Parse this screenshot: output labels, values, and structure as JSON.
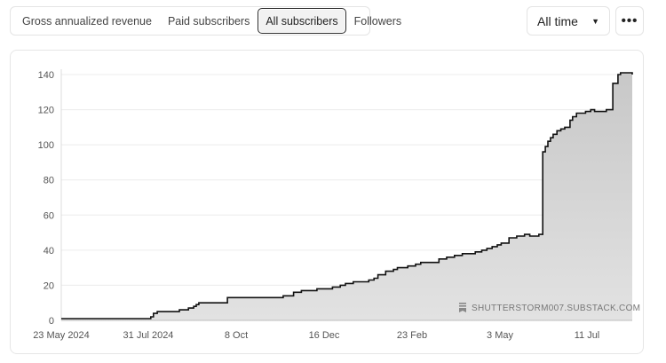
{
  "tabs": [
    {
      "label": "Gross annualized revenue",
      "active": false
    },
    {
      "label": "Paid subscribers",
      "active": false
    },
    {
      "label": "All subscribers",
      "active": true
    },
    {
      "label": "Followers",
      "active": false
    }
  ],
  "period": {
    "label": "All time",
    "icon": "caret-down-icon"
  },
  "more": {
    "label": "•••",
    "icon": "ellipsis-icon"
  },
  "watermark": {
    "text": "SHUTTERSTORM007.SUBSTACK.COM",
    "icon": "substack-logo-icon"
  },
  "colors": {
    "line": "#111111",
    "fill": "#c8c8c8",
    "grid": "#ececec",
    "active_tab_border": "#2b2b2b"
  },
  "chart_data": {
    "type": "area",
    "step": true,
    "title": "",
    "xlabel": "",
    "ylabel": "",
    "ylim": [
      0,
      140
    ],
    "y_ticks": [
      0,
      20,
      40,
      60,
      80,
      100,
      120,
      140
    ],
    "x_ticks": [
      "23 May 2024",
      "31 Jul 2024",
      "8 Oct",
      "16 Dec",
      "23 Feb",
      "3 May",
      "11 Jul"
    ],
    "x_range": [
      "2024-05-23",
      "2025-08-06"
    ],
    "grid": true,
    "legend": "none",
    "series": [
      {
        "x": [
          "2024-05-23",
          "2024-07-31",
          "2024-08-02",
          "2024-08-05",
          "2024-08-22",
          "2024-08-29",
          "2024-09-02",
          "2024-09-04",
          "2024-09-06",
          "2024-09-28",
          "2024-11-10",
          "2024-11-18",
          "2024-11-24",
          "2024-12-06",
          "2024-12-18",
          "2024-12-24",
          "2024-12-28",
          "2025-01-03",
          "2025-01-15",
          "2025-01-19",
          "2025-01-22",
          "2025-01-28",
          "2025-02-03",
          "2025-02-06",
          "2025-02-10",
          "2025-02-14",
          "2025-02-20",
          "2025-02-24",
          "2025-03-10",
          "2025-03-16",
          "2025-03-22",
          "2025-03-28",
          "2025-04-07",
          "2025-04-12",
          "2025-04-16",
          "2025-04-20",
          "2025-04-24",
          "2025-04-27",
          "2025-05-03",
          "2025-05-09",
          "2025-05-15",
          "2025-05-19",
          "2025-05-26",
          "2025-05-29",
          "2025-05-31",
          "2025-06-02",
          "2025-06-04",
          "2025-06-06",
          "2025-06-09",
          "2025-06-12",
          "2025-06-15",
          "2025-06-19",
          "2025-06-21",
          "2025-06-24",
          "2025-07-01",
          "2025-07-05",
          "2025-07-08",
          "2025-07-17",
          "2025-07-22",
          "2025-07-26",
          "2025-07-28",
          "2025-08-06"
        ],
        "y": [
          1,
          2,
          4,
          5,
          6,
          7,
          8,
          9,
          10,
          13,
          14,
          16,
          17,
          18,
          19,
          20,
          21,
          22,
          23,
          24,
          26,
          28,
          29,
          30,
          30,
          31,
          32,
          33,
          35,
          36,
          37,
          38,
          39,
          40,
          41,
          42,
          43,
          44,
          47,
          48,
          49,
          48,
          49,
          96,
          99,
          102,
          104,
          106,
          108,
          109,
          110,
          114,
          116,
          118,
          119,
          120,
          119,
          120,
          135,
          140,
          141,
          140
        ]
      }
    ]
  }
}
